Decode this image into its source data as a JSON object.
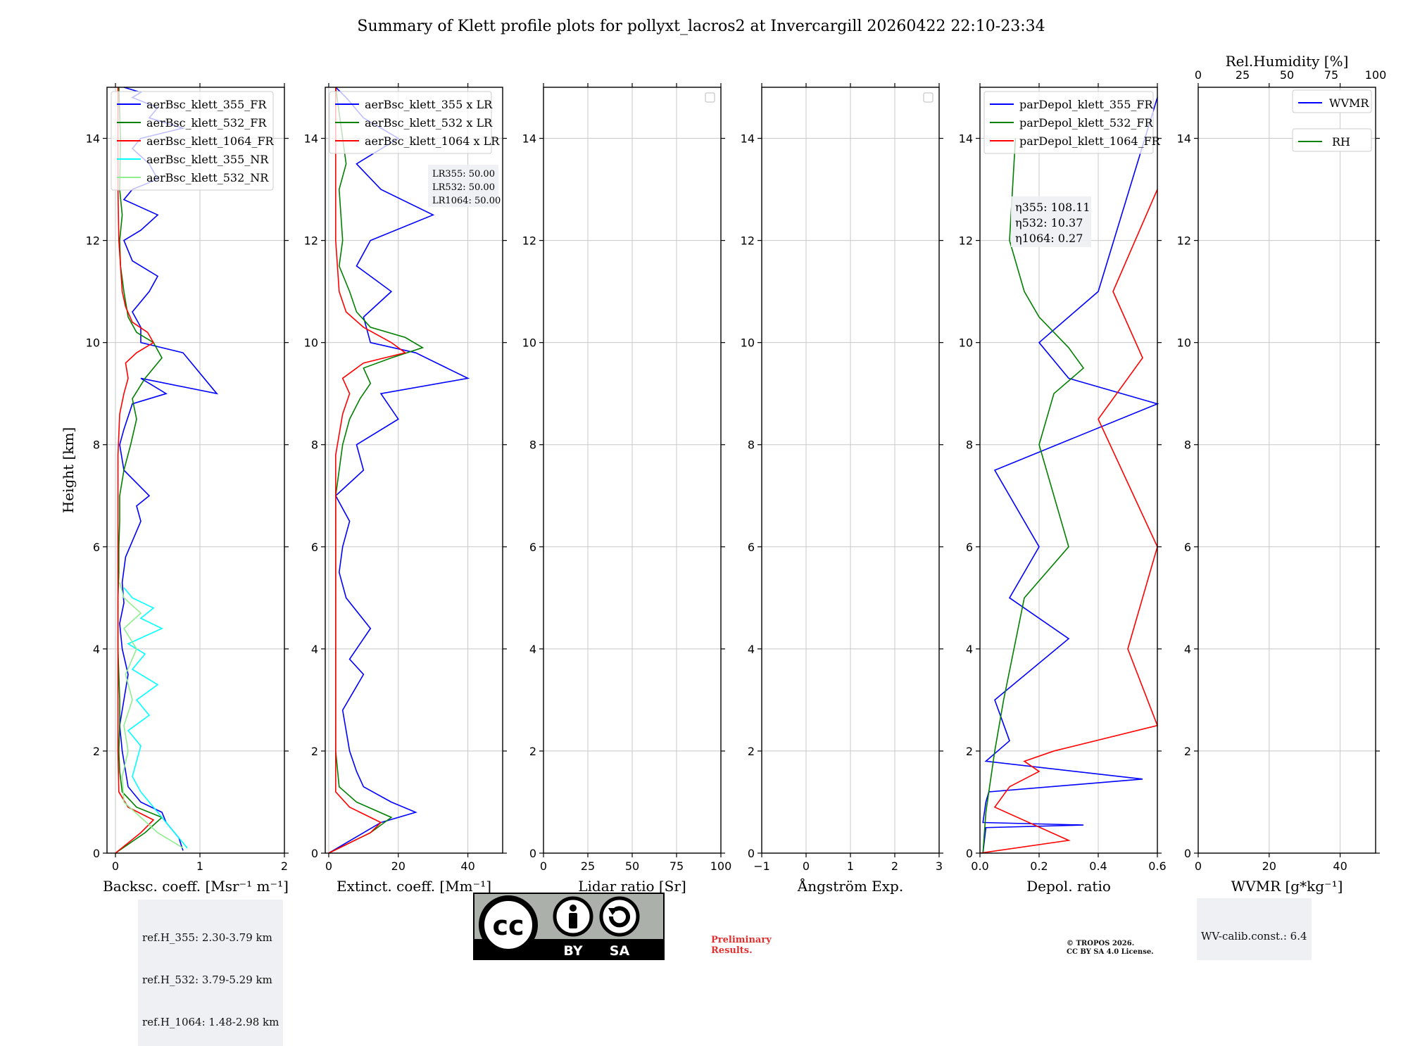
{
  "title": "Summary of Klett profile plots for pollyxt_lacros2 at Invercargill 20260422 22:10-23:34",
  "colors": {
    "b355": "#0000ff",
    "g532": "#008000",
    "r1064": "#ff0000",
    "c355nr": "#00ffff",
    "l532nr": "#90ee90"
  },
  "chart_data": [
    {
      "type": "line",
      "id": "backscatter",
      "xlabel": "Backsc. coeff. [Msr⁻¹ m⁻¹]",
      "ylabel": "Height [km]",
      "xlim": [
        -0.1,
        2.0
      ],
      "ylim": [
        0,
        15
      ],
      "xticks": [
        0,
        1,
        2
      ],
      "xtick_labels": [
        "0",
        "1",
        "2"
      ],
      "yticks": [
        0,
        2,
        4,
        6,
        8,
        10,
        12,
        14
      ],
      "legend": [
        "aerBsc_klett_355_FR",
        "aerBsc_klett_532_FR",
        "aerBsc_klett_1064_FR",
        "aerBsc_klett_355_NR",
        "aerBsc_klett_532_NR"
      ],
      "series": [
        {
          "name": "aerBsc_klett_355_FR",
          "color": "#0000ff",
          "x": [
            0.8,
            0.75,
            0.6,
            0.55,
            0.3,
            0.15,
            0.12,
            0.08,
            0.05,
            0.1,
            0.15,
            0.08,
            0.05,
            0.1,
            0.08,
            0.12,
            0.3,
            0.25,
            0.4,
            0.1,
            0.05,
            0.1,
            0.2,
            0.6,
            0.3,
            1.2,
            0.8,
            0.3,
            0.3,
            0.2,
            0.4,
            0.5,
            0.2,
            0.1,
            0.3,
            0.5,
            0.1,
            0.2,
            0.5,
            0.4,
            0.2,
            0.3,
            0.8,
            0.4,
            0.5,
            0.2,
            0.3,
            0.1
          ],
          "h": [
            0.05,
            0.3,
            0.6,
            0.8,
            1.0,
            1.3,
            1.6,
            2.0,
            2.5,
            3.0,
            3.5,
            4.0,
            4.5,
            4.9,
            5.3,
            5.8,
            6.5,
            6.8,
            7.0,
            7.5,
            8.0,
            8.3,
            8.8,
            9.0,
            9.3,
            9.0,
            9.8,
            10.0,
            10.3,
            10.6,
            11.0,
            11.3,
            11.6,
            12.0,
            12.2,
            12.5,
            12.8,
            13.0,
            13.2,
            13.5,
            13.8,
            14.0,
            14.2,
            14.4,
            14.6,
            14.8,
            14.9,
            15.0
          ]
        },
        {
          "name": "aerBsc_klett_532_FR",
          "color": "#008000",
          "x": [
            0.0,
            0.35,
            0.55,
            0.25,
            0.08,
            0.05,
            0.04,
            0.05,
            0.05,
            0.04,
            0.03,
            0.03,
            0.03,
            0.04,
            0.04,
            0.05,
            0.05,
            0.1,
            0.18,
            0.25,
            0.2,
            0.35,
            0.55,
            0.45,
            0.25,
            0.15,
            0.1,
            0.06,
            0.05,
            0.08,
            0.05,
            0.06,
            0.04
          ],
          "h": [
            0.0,
            0.4,
            0.7,
            0.9,
            1.2,
            1.6,
            2.0,
            2.5,
            3.0,
            3.5,
            4.0,
            4.5,
            5.0,
            5.5,
            6.0,
            6.5,
            7.0,
            7.5,
            8.0,
            8.5,
            8.9,
            9.3,
            9.7,
            10.0,
            10.2,
            10.5,
            11.0,
            11.5,
            12.0,
            12.5,
            13.0,
            14.0,
            15.0
          ]
        },
        {
          "name": "aerBsc_klett_1064_FR",
          "color": "#ff0000",
          "x": [
            0.0,
            0.3,
            0.45,
            0.15,
            0.04,
            0.03,
            0.03,
            0.03,
            0.03,
            0.03,
            0.03,
            0.03,
            0.04,
            0.05,
            0.1,
            0.15,
            0.12,
            0.25,
            0.45,
            0.38,
            0.2,
            0.12,
            0.08,
            0.04,
            0.03,
            0.03
          ],
          "h": [
            0.0,
            0.4,
            0.65,
            0.9,
            1.2,
            2.0,
            3.0,
            4.0,
            5.0,
            6.0,
            7.0,
            7.8,
            8.2,
            8.6,
            9.0,
            9.3,
            9.6,
            9.8,
            10.0,
            10.2,
            10.4,
            10.7,
            11.0,
            12.0,
            13.0,
            15.0
          ]
        },
        {
          "name": "aerBsc_klett_355_NR",
          "color": "#00ffff",
          "x": [
            0.85,
            0.7,
            0.5,
            0.3,
            0.2,
            0.25,
            0.3,
            0.15,
            0.4,
            0.25,
            0.5,
            0.2,
            0.35,
            0.15,
            0.55,
            0.3,
            0.45,
            0.2,
            0.1
          ],
          "h": [
            0.1,
            0.4,
            0.8,
            1.2,
            1.5,
            1.8,
            2.1,
            2.4,
            2.7,
            3.0,
            3.3,
            3.6,
            3.9,
            4.1,
            4.4,
            4.6,
            4.8,
            5.0,
            5.2
          ]
        },
        {
          "name": "aerBsc_klett_532_NR",
          "color": "#90ee90",
          "x": [
            0.8,
            0.5,
            0.3,
            0.1,
            0.08,
            0.15,
            0.1,
            0.2,
            0.12,
            0.25,
            0.1,
            0.3,
            0.1,
            0.05
          ],
          "h": [
            0.1,
            0.4,
            0.7,
            1.0,
            1.5,
            2.0,
            2.5,
            3.0,
            3.5,
            4.0,
            4.4,
            4.7,
            5.0,
            5.3
          ]
        }
      ]
    },
    {
      "type": "line",
      "id": "extinction",
      "xlabel": "Extinct. coeff. [Mm⁻¹]",
      "xlim": [
        -1,
        50
      ],
      "ylim": [
        0,
        15
      ],
      "xticks": [
        0,
        20,
        40
      ],
      "xtick_labels": [
        "0",
        "20",
        "40"
      ],
      "yticks": [
        0,
        2,
        4,
        6,
        8,
        10,
        12,
        14
      ],
      "legend": [
        "aerBsc_klett_355 x LR",
        "aerBsc_klett_532 x LR",
        "aerBsc_klett_1064 x LR"
      ],
      "lidar_ratio_labels": [
        "LR355: 50.00",
        "LR532: 50.00",
        "LR1064: 50.00"
      ],
      "series": [
        {
          "name": "aerBsc_klett_355 x LR",
          "color": "#0000ff",
          "x": [
            0.0,
            15,
            25,
            18,
            10,
            8,
            6,
            5,
            4,
            10,
            6,
            12,
            5,
            3,
            4,
            6,
            2,
            10,
            8,
            20,
            15,
            40,
            25,
            12,
            10,
            18,
            8,
            12,
            30,
            15,
            8,
            20,
            10,
            5,
            2
          ],
          "h": [
            0.0,
            0.6,
            0.8,
            1.0,
            1.3,
            1.6,
            2.0,
            2.4,
            2.8,
            3.5,
            3.8,
            4.4,
            5.0,
            5.5,
            6.0,
            6.5,
            7.0,
            7.5,
            8.0,
            8.5,
            9.0,
            9.3,
            9.8,
            10.0,
            10.5,
            11.0,
            11.5,
            12.0,
            12.5,
            13.0,
            13.5,
            14.0,
            14.4,
            14.8,
            15.0
          ]
        },
        {
          "name": "aerBsc_klett_532 x LR",
          "color": "#008000",
          "x": [
            0.0,
            12,
            18,
            8,
            3,
            2,
            2,
            2,
            2,
            2,
            2,
            3,
            4,
            6,
            9,
            12,
            10,
            18,
            27,
            22,
            12,
            8,
            6,
            3,
            4,
            3,
            5,
            3,
            2
          ],
          "h": [
            0.0,
            0.4,
            0.7,
            1.0,
            1.3,
            2.0,
            3.0,
            4.0,
            5.0,
            6.0,
            7.0,
            7.5,
            8.0,
            8.5,
            8.9,
            9.2,
            9.5,
            9.7,
            9.9,
            10.1,
            10.3,
            10.6,
            11.0,
            11.5,
            12.0,
            13.0,
            13.5,
            14.5,
            15.0
          ]
        },
        {
          "name": "aerBsc_klett_1064 x LR",
          "color": "#ff0000",
          "x": [
            0.0,
            12,
            15,
            6,
            2,
            2,
            2,
            2,
            2,
            2,
            2,
            2,
            3,
            4,
            6,
            4,
            10,
            22,
            18,
            10,
            5,
            3,
            2,
            2,
            2
          ],
          "h": [
            0.0,
            0.4,
            0.6,
            0.9,
            1.2,
            2.0,
            3.0,
            4.0,
            5.0,
            6.0,
            7.0,
            7.8,
            8.2,
            8.6,
            9.0,
            9.3,
            9.6,
            9.8,
            10.0,
            10.3,
            10.6,
            11.0,
            12.0,
            13.0,
            15.0
          ]
        }
      ]
    },
    {
      "type": "line",
      "id": "lidar-ratio",
      "xlabel": "Lidar ratio [Sr]",
      "xlim": [
        0,
        100
      ],
      "ylim": [
        0,
        15
      ],
      "xticks": [
        0,
        25,
        50,
        75,
        100
      ],
      "xtick_labels": [
        "0",
        "25",
        "50",
        "75",
        "100"
      ],
      "yticks": [
        0,
        2,
        4,
        6,
        8,
        10,
        12,
        14
      ],
      "series": []
    },
    {
      "type": "line",
      "id": "angstrom",
      "xlabel": "Ångström Exp.",
      "xlim": [
        -1,
        3
      ],
      "ylim": [
        0,
        15
      ],
      "xticks": [
        -1,
        0,
        1,
        2,
        3
      ],
      "xtick_labels": [
        "−1",
        "0",
        "1",
        "2",
        "3"
      ],
      "yticks": [
        0,
        2,
        4,
        6,
        8,
        10,
        12,
        14
      ],
      "series": []
    },
    {
      "type": "line",
      "id": "depol",
      "xlabel": "Depol. ratio",
      "xlim": [
        0,
        0.6
      ],
      "ylim": [
        0,
        15
      ],
      "xticks": [
        0,
        0.2,
        0.4,
        0.6
      ],
      "xtick_labels": [
        "0.0",
        "0.2",
        "0.4",
        "0.6"
      ],
      "yticks": [
        0,
        2,
        4,
        6,
        8,
        10,
        12,
        14
      ],
      "legend": [
        "parDepol_klett_355_FR",
        "parDepol_klett_532_FR",
        "parDepol_klett_1064_FR"
      ],
      "eta_labels": [
        "η355: 108.11",
        "η532: 10.37",
        "η1064: 0.27"
      ],
      "series": [
        {
          "name": "parDepol_klett_355_FR",
          "color": "#0000ff",
          "x": [
            0.01,
            0.02,
            0.35,
            0.01,
            0.02,
            0.03,
            0.55,
            0.02,
            0.1,
            0.05,
            0.3,
            0.1,
            0.2,
            0.05,
            0.6,
            0.3,
            0.2,
            0.4,
            0.6
          ],
          "h": [
            0.0,
            0.5,
            0.55,
            0.6,
            1.0,
            1.2,
            1.45,
            1.8,
            2.2,
            3.0,
            4.2,
            5.0,
            6.0,
            7.5,
            8.8,
            9.3,
            10.0,
            11.0,
            14.8
          ]
        },
        {
          "name": "parDepol_klett_532_FR",
          "color": "#008000",
          "x": [
            0.01,
            0.02,
            0.03,
            0.05,
            0.08,
            0.15,
            0.3,
            0.2,
            0.25,
            0.35,
            0.3,
            0.2,
            0.15,
            0.1,
            0.12
          ],
          "h": [
            0.0,
            0.8,
            1.2,
            2.0,
            3.0,
            5.0,
            6.0,
            8.0,
            9.0,
            9.5,
            9.9,
            10.5,
            11.0,
            12.0,
            14.0
          ]
        },
        {
          "name": "parDepol_klett_1064_FR",
          "color": "#ff0000",
          "x": [
            0.0,
            0.3,
            0.05,
            0.1,
            0.2,
            0.15,
            0.25,
            0.6,
            0.5,
            0.6,
            0.4,
            0.55,
            0.45,
            0.6
          ],
          "h": [
            0.0,
            0.25,
            0.9,
            1.3,
            1.6,
            1.8,
            2.0,
            2.5,
            4.0,
            6.0,
            8.5,
            9.7,
            11.0,
            13.0
          ]
        }
      ]
    },
    {
      "type": "line",
      "id": "wvmr",
      "xlabel": "WVMR [g*kg⁻¹]",
      "top_xlabel": "Rel.Humidity [%]",
      "xlim": [
        0,
        50
      ],
      "top_xlim": [
        0,
        100
      ],
      "ylim": [
        0,
        15
      ],
      "xticks": [
        0,
        20,
        40
      ],
      "xtick_labels": [
        "0",
        "20",
        "40"
      ],
      "top_xticks": [
        0,
        25,
        50,
        75,
        100
      ],
      "top_xtick_labels": [
        "0",
        "25",
        "50",
        "75",
        "100"
      ],
      "yticks": [
        0,
        2,
        4,
        6,
        8,
        10,
        12,
        14
      ],
      "legend": [
        "WVMR",
        "RH"
      ],
      "series": []
    }
  ],
  "info": {
    "refH": [
      "ref.H_355: 2.30-3.79 km",
      "ref.H_532: 3.79-5.29 km",
      "ref.H_1064: 1.48-2.98 km"
    ],
    "wv_calib": "WV-calib.const.: 6.4",
    "preliminary": [
      "Preliminary",
      "Results."
    ],
    "copyright": [
      "© TROPOS 2026.",
      "CC BY SA 4.0 License."
    ],
    "cc_by": "BY",
    "cc_sa": "SA",
    "cc_mark": "cc"
  }
}
